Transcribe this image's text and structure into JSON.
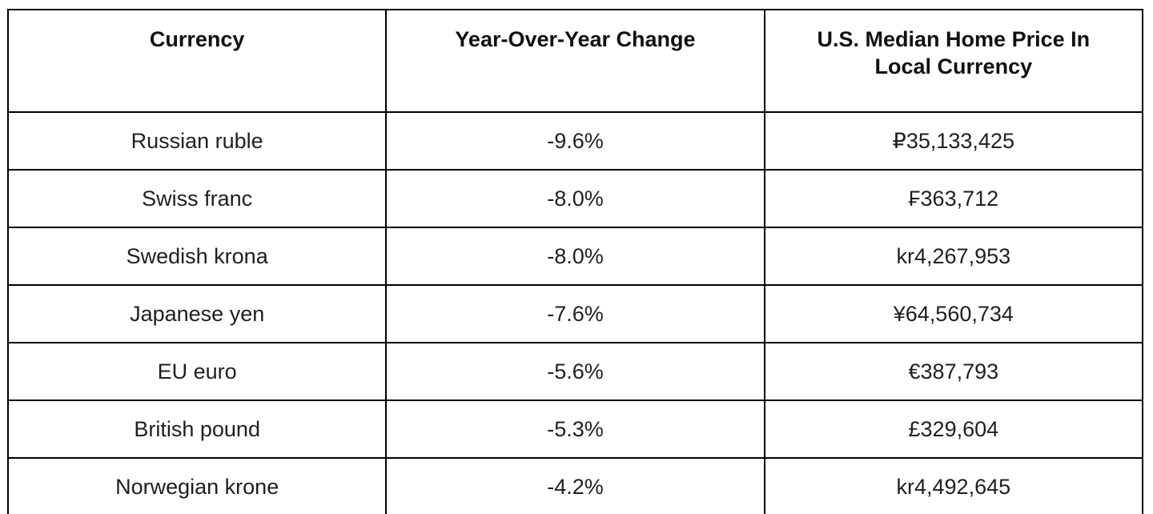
{
  "table": {
    "columns": [
      {
        "label": "Currency"
      },
      {
        "label": "Year-Over-Year Change"
      },
      {
        "label": "U.S. Median Home Price In Local Currency"
      }
    ],
    "rows": [
      {
        "currency": "Russian ruble",
        "yoy_change": "-9.6%",
        "price_local": "₽35,133,425"
      },
      {
        "currency": "Swiss franc",
        "yoy_change": "-8.0%",
        "price_local": "₣363,712"
      },
      {
        "currency": "Swedish krona",
        "yoy_change": "-8.0%",
        "price_local": "kr4,267,953"
      },
      {
        "currency": "Japanese yen",
        "yoy_change": "-7.6%",
        "price_local": "¥64,560,734"
      },
      {
        "currency": "EU euro",
        "yoy_change": "-5.6%",
        "price_local": "€387,793"
      },
      {
        "currency": "British pound",
        "yoy_change": "-5.3%",
        "price_local": "£329,604"
      },
      {
        "currency": "Norwegian krone",
        "yoy_change": "-4.2%",
        "price_local": "kr4,492,645"
      }
    ]
  },
  "chart_data": {
    "type": "table",
    "title": "",
    "columns": [
      "Currency",
      "Year-Over-Year Change",
      "U.S. Median Home Price In Local Currency"
    ],
    "rows": [
      [
        "Russian ruble",
        "-9.6%",
        "₽35,133,425"
      ],
      [
        "Swiss franc",
        "-8.0%",
        "₣363,712"
      ],
      [
        "Swedish krona",
        "-8.0%",
        "kr4,267,953"
      ],
      [
        "Japanese yen",
        "-7.6%",
        "¥64,560,734"
      ],
      [
        "EU euro",
        "-5.6%",
        "€387,793"
      ],
      [
        "British pound",
        "-5.3%",
        "£329,604"
      ],
      [
        "Norwegian krone",
        "-4.2%",
        "kr4,492,645"
      ]
    ],
    "yoy_change_pct": [
      -9.6,
      -8.0,
      -8.0,
      -7.6,
      -5.6,
      -5.3,
      -4.2
    ],
    "price_local_numeric": [
      35133425,
      363712,
      4267953,
      64560734,
      387793,
      329604,
      4492645
    ],
    "currency_symbols": [
      "₽",
      "₣",
      "kr",
      "¥",
      "€",
      "£",
      "kr"
    ]
  },
  "colors": {
    "border": "#000000",
    "text": "#1f1f1f",
    "background": "#ffffff"
  }
}
